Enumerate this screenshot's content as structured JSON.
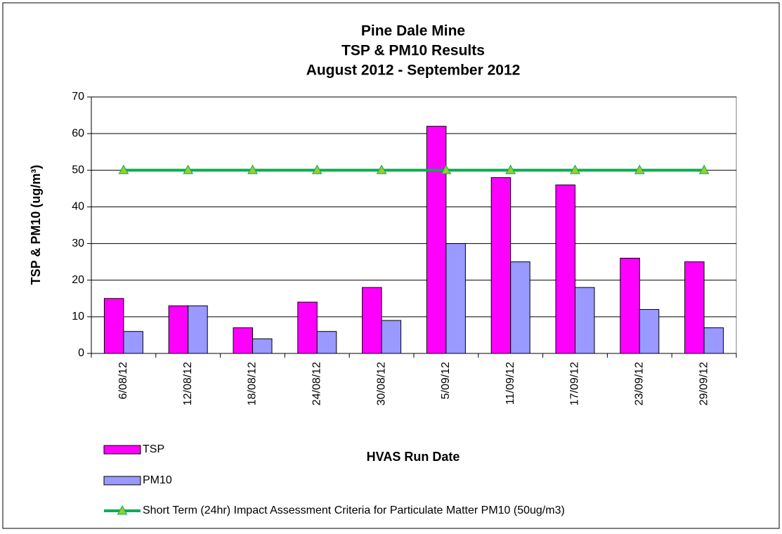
{
  "chart_data": {
    "type": "bar",
    "title": [
      "Pine Dale Mine",
      "TSP & PM10 Results",
      "August 2012 - September 2012"
    ],
    "x_label": "HVAS Run Date",
    "y_label": "TSP & PM10 (ug/m³)",
    "categories": [
      "6/08/12",
      "12/08/12",
      "18/08/12",
      "24/08/12",
      "30/08/12",
      "5/09/12",
      "11/09/12",
      "17/09/12",
      "23/09/12",
      "29/09/12"
    ],
    "series": [
      {
        "name": "TSP",
        "type": "bar",
        "color": "#ff00ff",
        "values": [
          15,
          13,
          7,
          14,
          18,
          62,
          48,
          46,
          26,
          25
        ]
      },
      {
        "name": "PM10",
        "type": "bar",
        "color": "#9999ff",
        "values": [
          6,
          13,
          4,
          6,
          9,
          30,
          25,
          18,
          12,
          7
        ]
      },
      {
        "name": "Short Term (24hr) Impact Assessment Criteria for Particulate Matter PM10 (50ug/m3)",
        "type": "line",
        "color": "#00b050",
        "marker_color": "#99cc33",
        "values": [
          50,
          50,
          50,
          50,
          50,
          50,
          50,
          50,
          50,
          50
        ]
      }
    ],
    "ylim": [
      0,
      70
    ],
    "yticks": [
      0,
      10,
      20,
      30,
      40,
      50,
      60,
      70
    ],
    "grid": true
  }
}
